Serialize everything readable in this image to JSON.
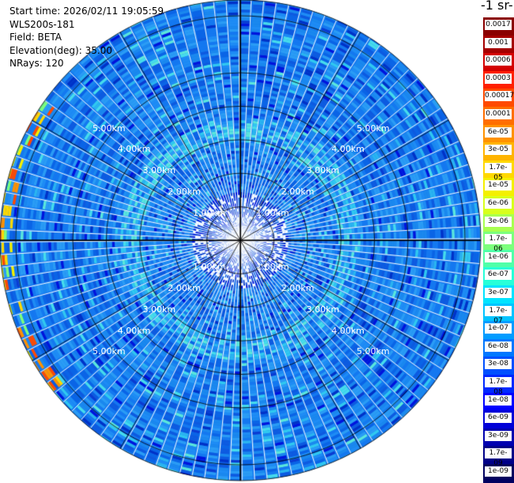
{
  "info": {
    "start_time": "Start time: 2026/02/11 19:05:59",
    "instrument": "WLS200s-181",
    "field": "Field: BETA",
    "elevation": "Elevation(deg): 35.00",
    "nrays": "NRays: 120"
  },
  "unit_label": "-1 sr-",
  "colorbar_labels": [
    "0.0017",
    "0.001",
    "0.0006",
    "0.0003",
    "0.00017",
    "0.0001",
    "6e-05",
    "3e-05",
    "1.7e-05",
    "1e-05",
    "6e-06",
    "3e-06",
    "1.7e-06",
    "1e-06",
    "6e-07",
    "3e-07",
    "1.7e-07",
    "1e-07",
    "6e-08",
    "3e-08",
    "1.7e-08",
    "1e-08",
    "6e-09",
    "3e-09",
    "1.7e-09",
    "1e-09"
  ],
  "ring_labels": [
    "1.00km",
    "2.00km",
    "3.00km",
    "4.00km",
    "5.00km"
  ],
  "colors": {
    "colorbar": [
      "#8a0000",
      "#a50000",
      "#d40000",
      "#ff2000",
      "#ff4a00",
      "#ff6e00",
      "#ff9200",
      "#ffb400",
      "#ffd800",
      "#f4f000",
      "#d8ff1c",
      "#a8ff50",
      "#7cff7c",
      "#50ffa8",
      "#28ffd8",
      "#00e4ff",
      "#00c4ff",
      "#009cff",
      "#0078ff",
      "#0050ff",
      "#0028ff",
      "#0000ff",
      "#0000d8",
      "#0000b0",
      "#000088",
      "#000060"
    ],
    "ring_line": "#000000",
    "ring_label": "#ffffff"
  }
}
